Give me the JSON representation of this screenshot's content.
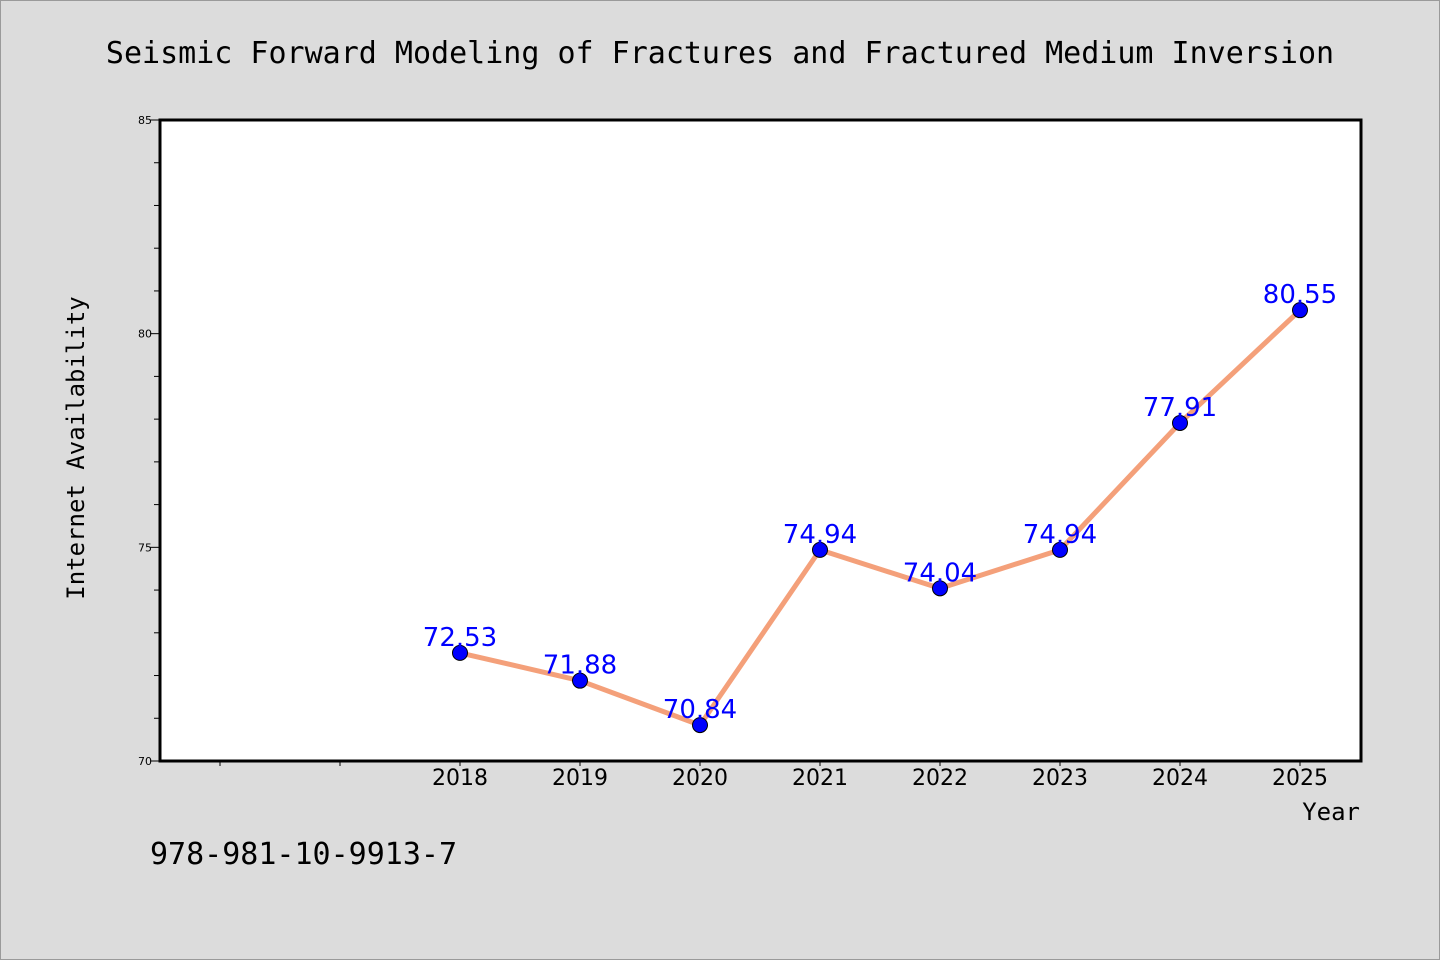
{
  "chart_data": {
    "type": "line",
    "title": "Seismic Forward Modeling of Fractures and Fractured Medium Inversion",
    "xlabel": "Year",
    "ylabel": "Internet Availability",
    "categories": [
      "2018",
      "2019",
      "2020",
      "2021",
      "2022",
      "2023",
      "2024",
      "2025"
    ],
    "series": [
      {
        "values": [
          72.53,
          71.88,
          70.84,
          74.94,
          74.04,
          74.94,
          77.91,
          80.55
        ],
        "data_labels": [
          "72.53",
          "71.88",
          "70.84",
          "74.94",
          "74.04",
          "74.94",
          "77.91",
          "80.55"
        ]
      }
    ],
    "ylim": [
      70,
      85
    ],
    "y_major_ticks": [
      70,
      75,
      80,
      85
    ],
    "y_minor_step": 1,
    "grid": false,
    "legend": "none",
    "colors": {
      "line": "#f4a07a",
      "marker": "#0000ff",
      "data_label": "#0000ff",
      "plot_background": "#ffffff",
      "page_background": "#dcdcdc"
    }
  },
  "footer_text": "978-981-10-9913-7"
}
